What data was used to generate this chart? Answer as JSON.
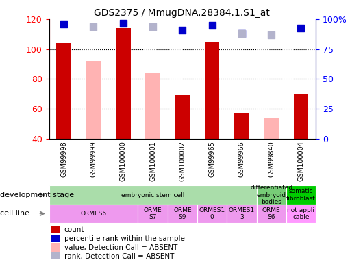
{
  "title": "GDS2375 / MmugDNA.28384.1.S1_at",
  "samples": [
    "GSM99998",
    "GSM99999",
    "GSM100000",
    "GSM100001",
    "GSM100002",
    "GSM99965",
    "GSM99966",
    "GSM99840",
    "GSM100004"
  ],
  "count_values": [
    104,
    null,
    114,
    null,
    69,
    105,
    57,
    null,
    70
  ],
  "absent_count_values": [
    null,
    92,
    null,
    84,
    null,
    null,
    null,
    54,
    null
  ],
  "percentile_rank": [
    96,
    null,
    97,
    null,
    91,
    95,
    88,
    null,
    93
  ],
  "absent_percentile_rank": [
    null,
    94,
    null,
    94,
    null,
    null,
    88,
    87,
    null
  ],
  "ylim_left": [
    40,
    120
  ],
  "ylim_right": [
    0,
    100
  ],
  "yticks_left": [
    40,
    60,
    80,
    100,
    120
  ],
  "yticks_right": [
    0,
    25,
    50,
    75,
    100
  ],
  "yticklabels_right": [
    "0",
    "25",
    "50",
    "75",
    "100%"
  ],
  "count_color": "#cc0000",
  "absent_count_color": "#ffb3b3",
  "percentile_color": "#0000cc",
  "absent_percentile_color": "#b3b3cc",
  "marker_size": 50,
  "dev_groups": [
    {
      "label": "embryonic stem cell",
      "start": 0,
      "end": 7,
      "color": "#aaddaa"
    },
    {
      "label": "differentiated\nembryoid\nbodies",
      "start": 7,
      "end": 8,
      "color": "#77cc77"
    },
    {
      "label": "somatic\nfibroblast",
      "start": 8,
      "end": 9,
      "color": "#00cc00"
    }
  ],
  "cell_groups": [
    {
      "label": "ORMES6",
      "start": 0,
      "end": 3,
      "color": "#ee99ee"
    },
    {
      "label": "ORME\nS7",
      "start": 3,
      "end": 4,
      "color": "#ee99ee"
    },
    {
      "label": "ORME\nS9",
      "start": 4,
      "end": 5,
      "color": "#ee99ee"
    },
    {
      "label": "ORMES1\n0",
      "start": 5,
      "end": 6,
      "color": "#ee99ee"
    },
    {
      "label": "ORMES1\n3",
      "start": 6,
      "end": 7,
      "color": "#ee99ee"
    },
    {
      "label": "ORME\nS6",
      "start": 7,
      "end": 8,
      "color": "#ee99ee"
    },
    {
      "label": "not appli\ncable",
      "start": 8,
      "end": 9,
      "color": "#ff99ff"
    }
  ],
  "legend_items": [
    {
      "color": "#cc0000",
      "label": "count"
    },
    {
      "color": "#0000cc",
      "label": "percentile rank within the sample"
    },
    {
      "color": "#ffb3b3",
      "label": "value, Detection Call = ABSENT"
    },
    {
      "color": "#b3b3cc",
      "label": "rank, Detection Call = ABSENT"
    }
  ]
}
